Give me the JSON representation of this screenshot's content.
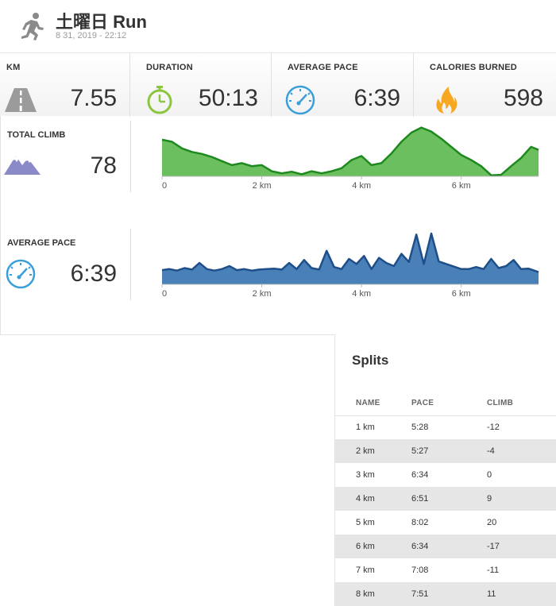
{
  "header": {
    "title": "土曜日 Run",
    "date": "8 31, 2019  -  22:12",
    "icon": "running-person-icon"
  },
  "stats": [
    {
      "label": "KM",
      "value": "7.55",
      "icon": "road-icon"
    },
    {
      "label": "DURATION",
      "value": "50:13",
      "icon": "stopwatch-icon"
    },
    {
      "label": "AVERAGE PACE",
      "value": "6:39",
      "icon": "speedometer-icon"
    },
    {
      "label": "CALORIES BURNED",
      "value": "598",
      "icon": "flame-icon"
    }
  ],
  "climb": {
    "label": "TOTAL CLIMB",
    "value": "78",
    "icon": "mountain-icon"
  },
  "pace": {
    "label": "AVERAGE PACE",
    "value": "6:39",
    "icon": "speedometer-icon"
  },
  "colors": {
    "elevation": "#6cbf5f",
    "elevation_line": "#1e8a1e",
    "pace": "#4a80b8",
    "pace_line": "#1f4f8a"
  },
  "chart_data": [
    {
      "type": "area",
      "x_ticks": [
        "0",
        "2 km",
        "4 km",
        "6 km"
      ],
      "xlim": [
        0,
        7.55
      ],
      "x": [
        0,
        0.2,
        0.4,
        0.6,
        0.8,
        1.0,
        1.2,
        1.4,
        1.6,
        1.8,
        2.0,
        2.2,
        2.4,
        2.6,
        2.8,
        3.0,
        3.2,
        3.4,
        3.6,
        3.8,
        4.0,
        4.2,
        4.4,
        4.6,
        4.8,
        5.0,
        5.2,
        5.4,
        5.6,
        5.8,
        6.0,
        6.2,
        6.4,
        6.6,
        6.8,
        7.0,
        7.2,
        7.4,
        7.55
      ],
      "y": [
        0.72,
        0.68,
        0.55,
        0.48,
        0.44,
        0.38,
        0.3,
        0.22,
        0.26,
        0.2,
        0.22,
        0.1,
        0.06,
        0.09,
        0.04,
        0.1,
        0.06,
        0.1,
        0.16,
        0.32,
        0.4,
        0.22,
        0.26,
        0.45,
        0.68,
        0.86,
        0.96,
        0.88,
        0.74,
        0.58,
        0.42,
        0.32,
        0.2,
        0.02,
        0.03,
        0.2,
        0.36,
        0.58,
        0.52
      ]
    },
    {
      "type": "area",
      "x_ticks": [
        "0",
        "2 km",
        "4 km",
        "6 km"
      ],
      "xlim": [
        0,
        7.55
      ],
      "x": [
        0,
        0.15,
        0.3,
        0.45,
        0.6,
        0.75,
        0.9,
        1.05,
        1.2,
        1.35,
        1.5,
        1.65,
        1.8,
        1.95,
        2.1,
        2.25,
        2.4,
        2.55,
        2.7,
        2.85,
        3.0,
        3.15,
        3.3,
        3.45,
        3.6,
        3.75,
        3.9,
        4.05,
        4.2,
        4.35,
        4.5,
        4.65,
        4.8,
        4.95,
        5.1,
        5.25,
        5.4,
        5.55,
        5.7,
        5.85,
        6.0,
        6.15,
        6.3,
        6.45,
        6.6,
        6.75,
        6.9,
        7.05,
        7.2,
        7.35,
        7.55
      ],
      "y": [
        0.28,
        0.3,
        0.27,
        0.32,
        0.29,
        0.42,
        0.3,
        0.27,
        0.3,
        0.36,
        0.28,
        0.3,
        0.27,
        0.29,
        0.3,
        0.31,
        0.29,
        0.42,
        0.3,
        0.48,
        0.32,
        0.29,
        0.66,
        0.34,
        0.3,
        0.5,
        0.4,
        0.56,
        0.3,
        0.52,
        0.42,
        0.36,
        0.6,
        0.44,
        0.98,
        0.4,
        1.0,
        0.45,
        0.4,
        0.35,
        0.3,
        0.3,
        0.34,
        0.3,
        0.5,
        0.32,
        0.36,
        0.48,
        0.3,
        0.31,
        0.24
      ]
    }
  ],
  "splits": {
    "title": "Splits",
    "columns": [
      "NAME",
      "PACE",
      "CLIMB"
    ],
    "rows": [
      [
        "1 km",
        "5:28",
        "-12"
      ],
      [
        "2 km",
        "5:27",
        "-4"
      ],
      [
        "3 km",
        "6:34",
        "0"
      ],
      [
        "4 km",
        "6:51",
        "9"
      ],
      [
        "5 km",
        "8:02",
        "20"
      ],
      [
        "6 km",
        "6:34",
        "-17"
      ],
      [
        "7 km",
        "7:08",
        "-11"
      ],
      [
        "8 km",
        "7:51",
        "11"
      ]
    ]
  }
}
